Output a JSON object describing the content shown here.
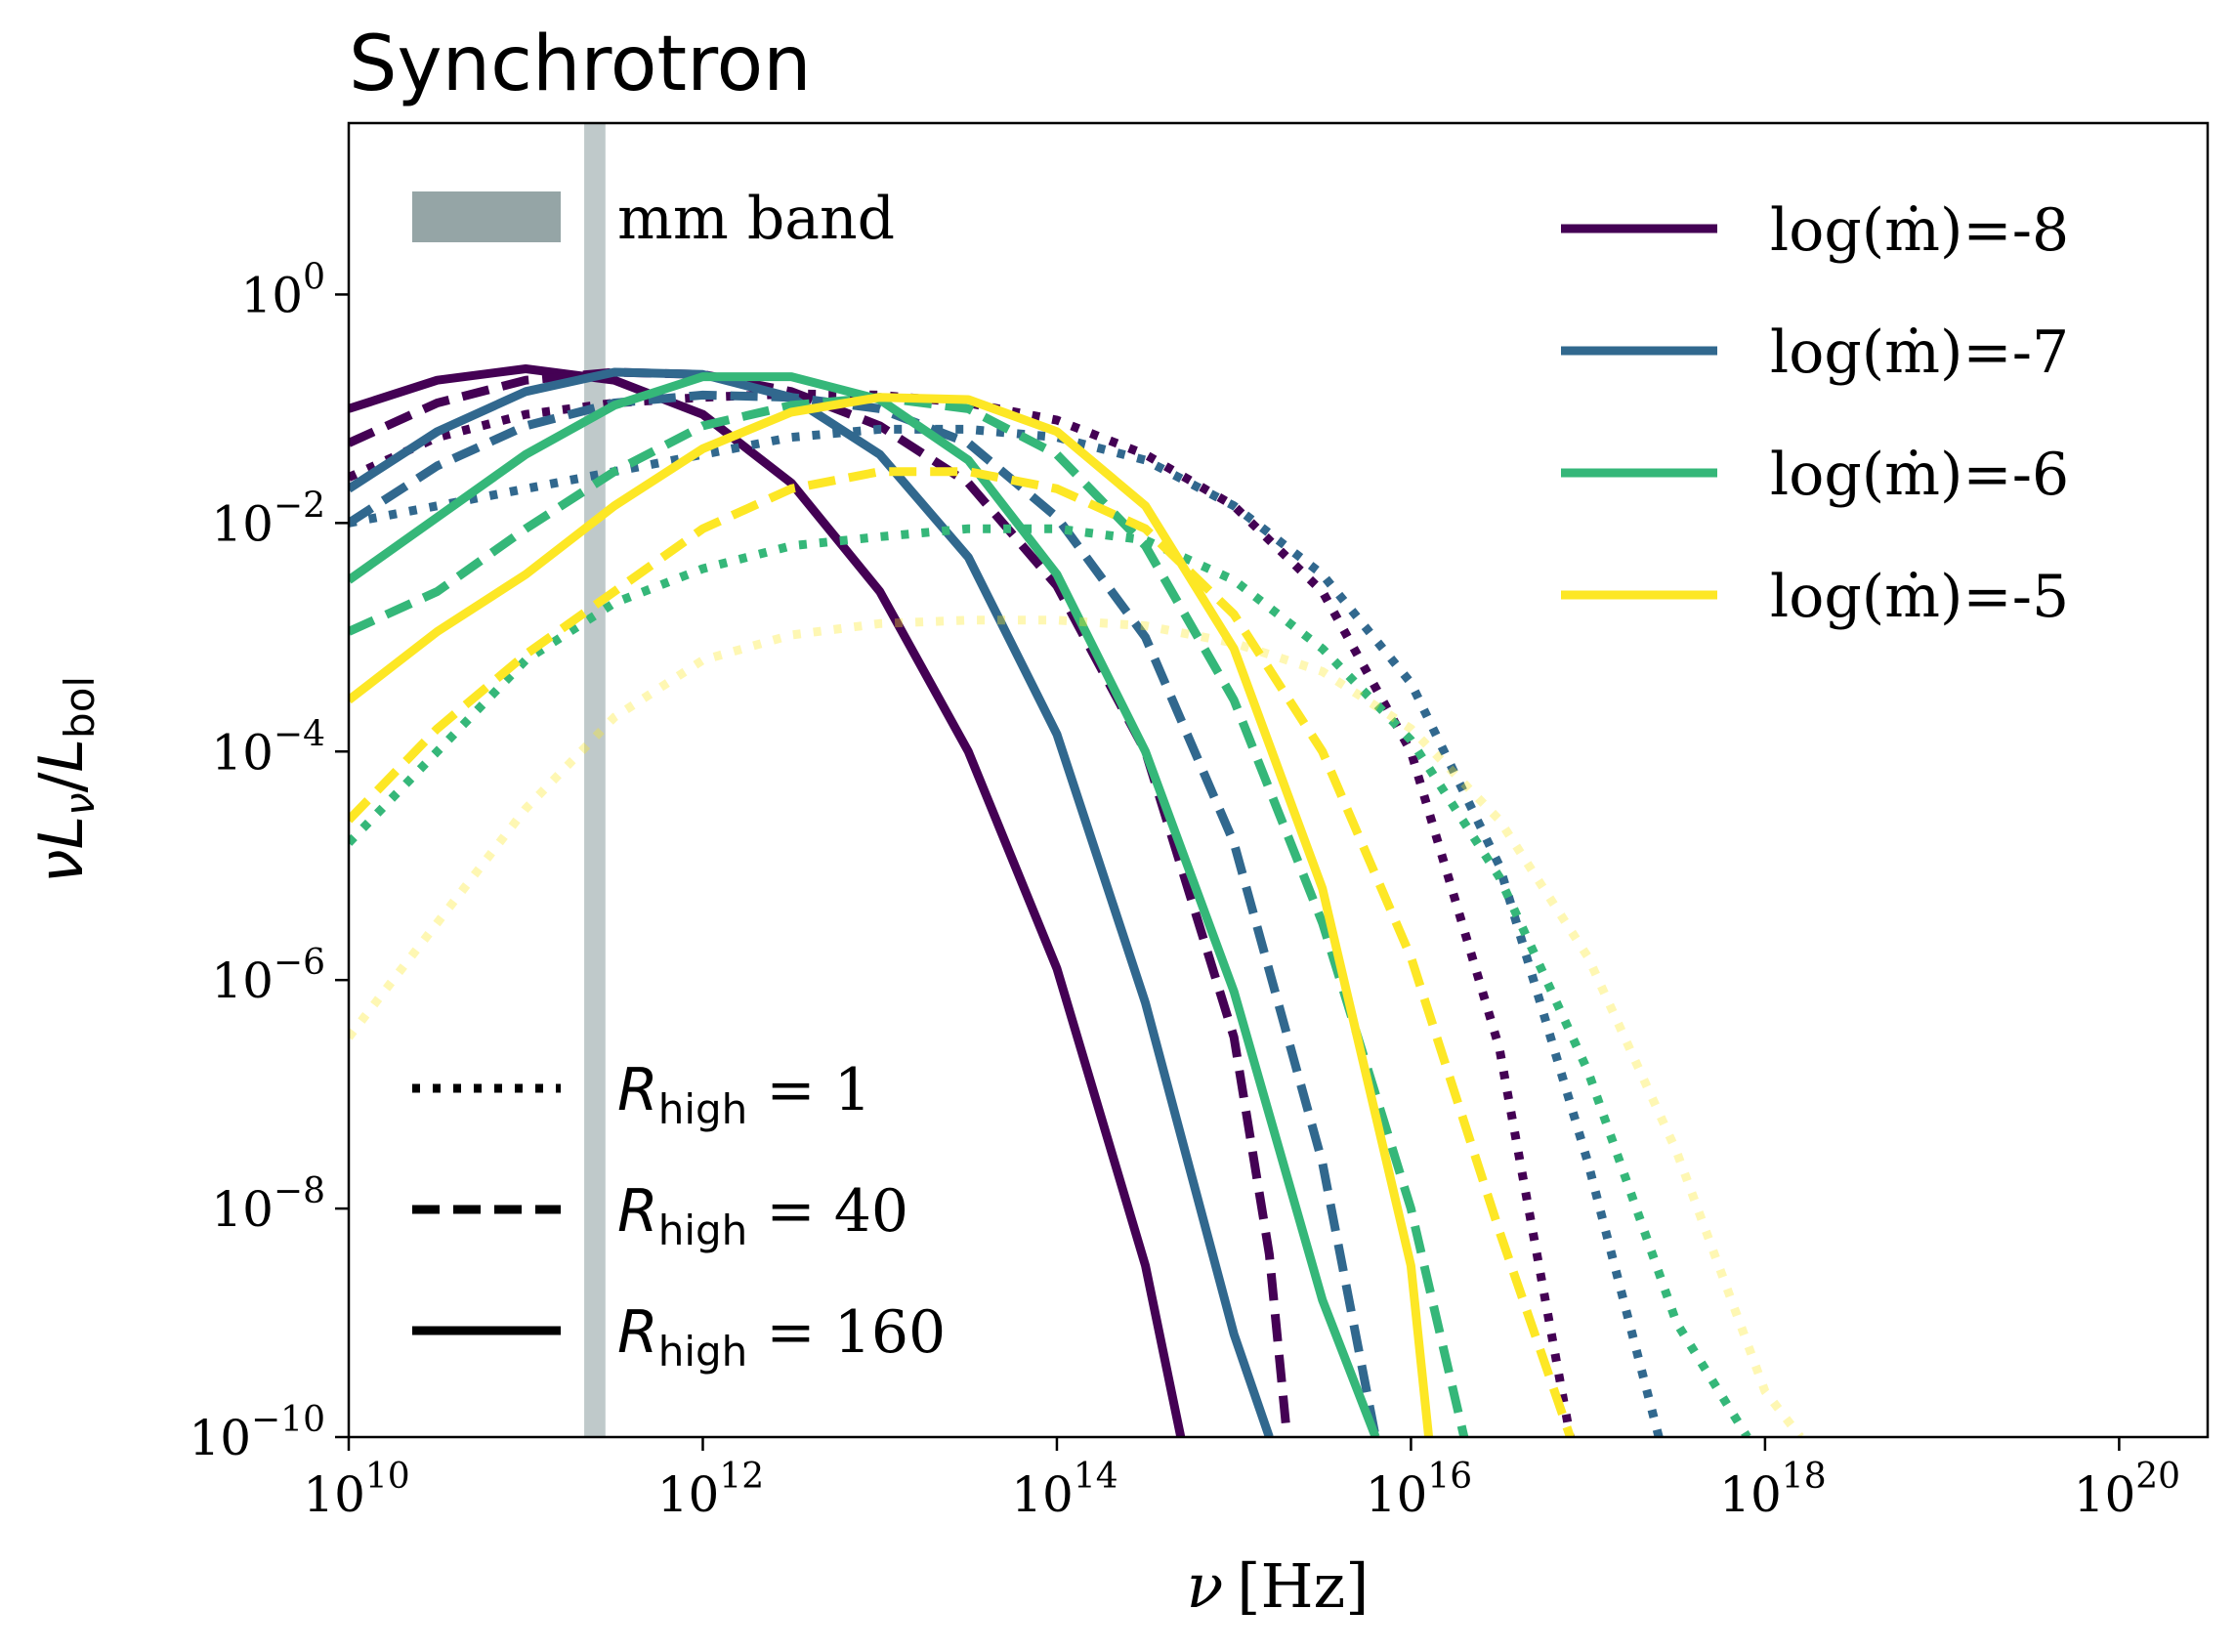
{
  "chart_data": {
    "type": "line",
    "title": "Synchrotron",
    "xlabel": "ν [Hz]",
    "xlabel_parts": {
      "var": "ν",
      "unit": "[Hz]"
    },
    "ylabel": "νLν/Lbol",
    "xscale": "log",
    "yscale": "log",
    "xlim_log10": [
      10,
      20.5
    ],
    "ylim_log10": [
      -10,
      1.5
    ],
    "xticks": [
      {
        "base": "10",
        "exp": "10",
        "value": 10
      },
      {
        "base": "10",
        "exp": "12",
        "value": 12
      },
      {
        "base": "10",
        "exp": "14",
        "value": 14
      },
      {
        "base": "10",
        "exp": "16",
        "value": 16
      },
      {
        "base": "10",
        "exp": "18",
        "value": 18
      },
      {
        "base": "10",
        "exp": "20",
        "value": 20
      }
    ],
    "yticks": [
      {
        "base": "10",
        "exp": "0",
        "value": 0
      },
      {
        "base": "10",
        "exp": "−2",
        "value": -2
      },
      {
        "base": "10",
        "exp": "−4",
        "value": -4
      },
      {
        "base": "10",
        "exp": "−6",
        "value": -6
      },
      {
        "base": "10",
        "exp": "−8",
        "value": -8
      },
      {
        "base": "10",
        "exp": "−10",
        "value": -10
      }
    ],
    "mm_band": {
      "label": "mm band",
      "x_log10": [
        11.33,
        11.45
      ],
      "color": "#95a5a6"
    },
    "accretion_legend": [
      {
        "label": "log(ṁ)=-8",
        "color": "#440154"
      },
      {
        "label": "log(ṁ)=-7",
        "color": "#31688e"
      },
      {
        "label": "log(ṁ)=-6",
        "color": "#35b779"
      },
      {
        "label": "log(ṁ)=-5",
        "color": "#fde725"
      }
    ],
    "rhigh_legend": [
      {
        "label": "R",
        "sub": "high",
        "value": " = 1",
        "style": "dotted"
      },
      {
        "label": "R",
        "sub": "high",
        "value": " = 40",
        "style": "dashed"
      },
      {
        "label": "R",
        "sub": "high",
        "value": " = 160",
        "style": "solid"
      }
    ],
    "series": [
      {
        "name": "log(ṁ)=-8, Rhigh=160",
        "color": "#440154",
        "style": "solid",
        "opacity": 1,
        "x": [
          10,
          10.5,
          11,
          11.5,
          12,
          12.5,
          13,
          13.5,
          14,
          14.5,
          14.7
        ],
        "y": [
          -1.0,
          -0.75,
          -0.65,
          -0.75,
          -1.05,
          -1.65,
          -2.6,
          -4.0,
          -5.9,
          -8.5,
          -10
        ]
      },
      {
        "name": "log(ṁ)=-8, Rhigh=40",
        "color": "#440154",
        "style": "dashed",
        "opacity": 1,
        "x": [
          10,
          10.5,
          11,
          11.5,
          12,
          12.5,
          13,
          13.5,
          14,
          14.5,
          15,
          15.2,
          15.3
        ],
        "y": [
          -1.3,
          -0.95,
          -0.75,
          -0.68,
          -0.7,
          -0.85,
          -1.15,
          -1.65,
          -2.55,
          -4.0,
          -6.5,
          -8.4,
          -10
        ]
      },
      {
        "name": "log(ṁ)=-8, Rhigh=1",
        "color": "#440154",
        "style": "dotted",
        "opacity": 1,
        "x": [
          10,
          10.5,
          11,
          11.5,
          12,
          12.5,
          13,
          13.5,
          14,
          14.5,
          15,
          15.5,
          16,
          16.5,
          16.9
        ],
        "y": [
          -1.6,
          -1.25,
          -1.05,
          -0.95,
          -0.9,
          -0.87,
          -0.88,
          -0.95,
          -1.1,
          -1.4,
          -1.85,
          -2.6,
          -4.0,
          -6.6,
          -10
        ]
      },
      {
        "name": "log(ṁ)=-7, Rhigh=160",
        "color": "#31688e",
        "style": "solid",
        "opacity": 1,
        "x": [
          10,
          10.5,
          11,
          11.5,
          12,
          12.5,
          13,
          13.5,
          14,
          14.5,
          15,
          15.2
        ],
        "y": [
          -1.7,
          -1.2,
          -0.85,
          -0.68,
          -0.7,
          -0.9,
          -1.4,
          -2.3,
          -3.85,
          -6.2,
          -9.1,
          -10
        ]
      },
      {
        "name": "log(ṁ)=-7, Rhigh=40",
        "color": "#31688e",
        "style": "dashed",
        "opacity": 1,
        "x": [
          10,
          10.5,
          11,
          11.5,
          12,
          12.5,
          13,
          13.5,
          14,
          14.5,
          15,
          15.5,
          15.8
        ],
        "y": [
          -2.0,
          -1.5,
          -1.15,
          -0.95,
          -0.88,
          -0.9,
          -1.0,
          -1.3,
          -1.95,
          -3.0,
          -4.8,
          -7.6,
          -10
        ]
      },
      {
        "name": "log(ṁ)=-7, Rhigh=1",
        "color": "#31688e",
        "style": "dotted",
        "opacity": 1,
        "x": [
          10,
          10.5,
          11,
          11.5,
          12,
          12.5,
          13,
          13.5,
          14,
          14.5,
          15,
          15.5,
          16,
          16.5,
          17,
          17.4
        ],
        "y": [
          -2.0,
          -1.85,
          -1.7,
          -1.55,
          -1.4,
          -1.25,
          -1.18,
          -1.18,
          -1.25,
          -1.45,
          -1.85,
          -2.45,
          -3.4,
          -5.0,
          -7.6,
          -10
        ]
      },
      {
        "name": "log(ṁ)=-6, Rhigh=160",
        "color": "#35b779",
        "style": "solid",
        "opacity": 1,
        "x": [
          10,
          10.5,
          11,
          11.5,
          12,
          12.5,
          13,
          13.5,
          14,
          14.5,
          15,
          15.5,
          15.8
        ],
        "y": [
          -2.5,
          -1.95,
          -1.4,
          -0.97,
          -0.72,
          -0.72,
          -0.92,
          -1.45,
          -2.45,
          -4.0,
          -6.1,
          -8.8,
          -10
        ]
      },
      {
        "name": "log(ṁ)=-6, Rhigh=40",
        "color": "#35b779",
        "style": "dashed",
        "opacity": 1,
        "x": [
          10,
          10.5,
          11,
          11.5,
          12,
          12.5,
          13,
          13.5,
          14,
          14.5,
          15,
          15.5,
          16,
          16.3
        ],
        "y": [
          -2.95,
          -2.6,
          -2.05,
          -1.55,
          -1.15,
          -0.97,
          -0.9,
          -1.0,
          -1.4,
          -2.2,
          -3.55,
          -5.5,
          -8.0,
          -10
        ]
      },
      {
        "name": "log(ṁ)=-6, Rhigh=1",
        "color": "#35b779",
        "style": "dotted",
        "opacity": 1,
        "x": [
          10,
          10.5,
          11,
          11.5,
          12,
          12.5,
          13,
          13.5,
          14,
          14.5,
          15,
          15.5,
          16,
          16.5,
          17,
          17.5,
          17.9
        ],
        "y": [
          -4.8,
          -4.0,
          -3.2,
          -2.7,
          -2.4,
          -2.2,
          -2.12,
          -2.05,
          -2.05,
          -2.15,
          -2.5,
          -3.1,
          -3.9,
          -5.1,
          -6.8,
          -9.0,
          -10
        ]
      },
      {
        "name": "log(ṁ)=-5, Rhigh=160",
        "color": "#fde725",
        "style": "solid",
        "opacity": 1,
        "x": [
          10,
          10.5,
          11,
          11.5,
          12,
          12.5,
          13,
          13.5,
          14,
          14.5,
          15,
          15.5,
          16,
          16.1
        ],
        "y": [
          -3.55,
          -2.95,
          -2.45,
          -1.85,
          -1.35,
          -1.03,
          -0.9,
          -0.92,
          -1.2,
          -1.85,
          -3.1,
          -5.2,
          -8.5,
          -10
        ]
      },
      {
        "name": "log(ṁ)=-5, Rhigh=40",
        "color": "#fde725",
        "style": "dashed",
        "opacity": 1,
        "x": [
          10,
          10.5,
          11,
          11.5,
          12,
          12.5,
          13,
          13.5,
          14,
          14.5,
          15,
          15.5,
          16,
          16.5,
          16.9
        ],
        "y": [
          -4.6,
          -3.8,
          -3.15,
          -2.6,
          -2.05,
          -1.7,
          -1.55,
          -1.55,
          -1.7,
          -2.05,
          -2.8,
          -4.0,
          -5.8,
          -8.2,
          -10
        ]
      },
      {
        "name": "log(ṁ)=-5, Rhigh=1",
        "color": "#fde725",
        "style": "dotted",
        "opacity": 0.35,
        "x": [
          10,
          10.5,
          11,
          11.5,
          12,
          12.5,
          13,
          13.5,
          14,
          14.5,
          15,
          15.5,
          16,
          16.5,
          17,
          17.5,
          18,
          18.2
        ],
        "y": [
          -6.5,
          -5.5,
          -4.5,
          -3.7,
          -3.2,
          -2.98,
          -2.88,
          -2.85,
          -2.85,
          -2.9,
          -3.05,
          -3.3,
          -3.8,
          -4.6,
          -5.8,
          -7.5,
          -9.6,
          -10
        ]
      }
    ]
  }
}
